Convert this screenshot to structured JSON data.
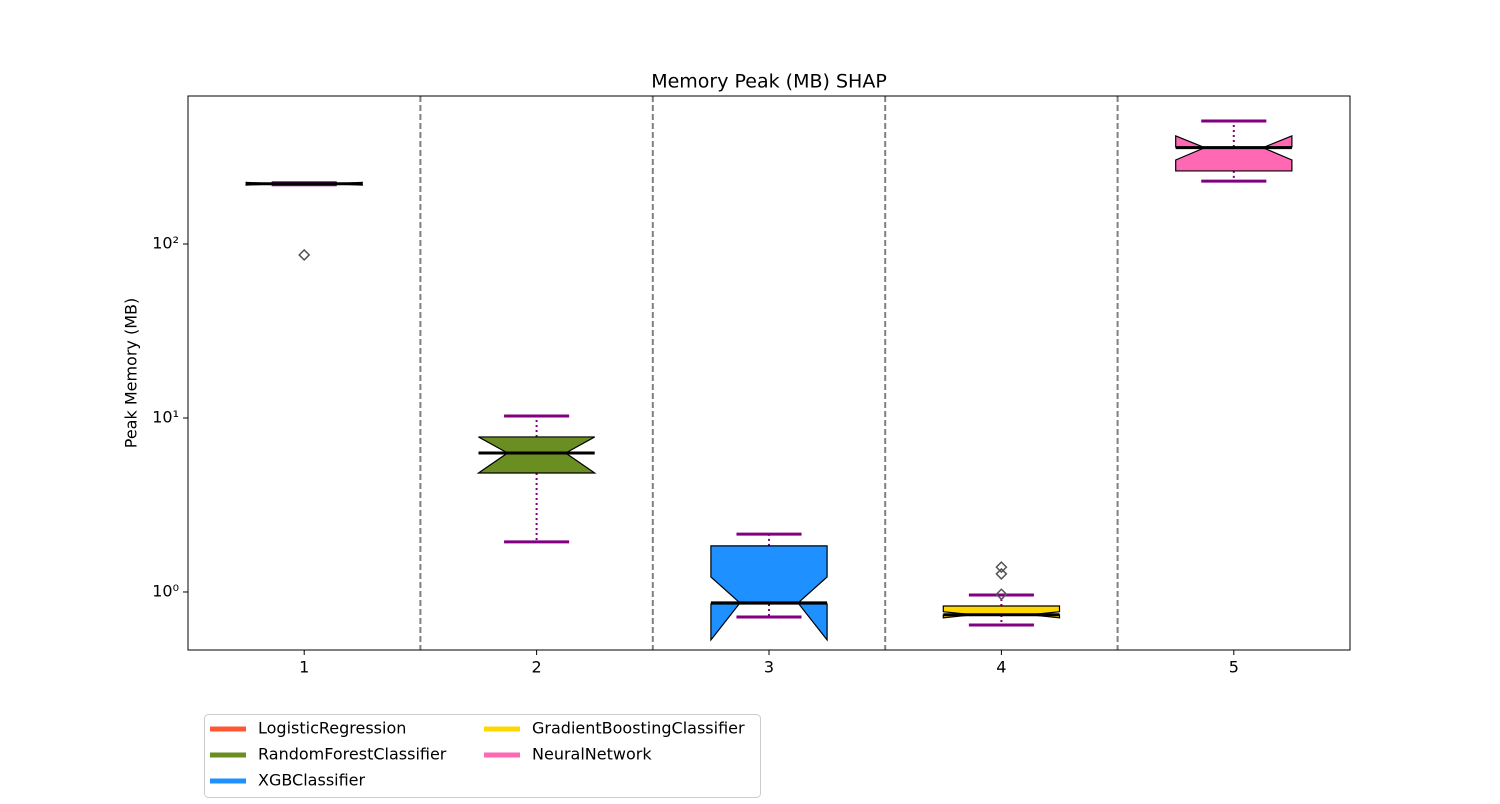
{
  "chart_data": {
    "type": "box",
    "title": "Memory Peak (MB) SHAP",
    "y_label": "Peak Memory (MB)",
    "yscale": "log",
    "ylim": [
      0.464,
      709
    ],
    "yticks": [
      {
        "value": 1,
        "label": "10⁰"
      },
      {
        "value": 10,
        "label": "10¹"
      },
      {
        "value": 100,
        "label": "10²"
      }
    ],
    "categories": [
      "1",
      "2",
      "3",
      "4",
      "5"
    ],
    "whisker_color": "#800080",
    "median_color": "#000000",
    "legend": "lower left outside",
    "series": [
      {
        "name": "LogisticRegression",
        "color": "#ff5733",
        "whislo": 219,
        "q1": 220,
        "med": 222,
        "q3": 224,
        "whishi": 225,
        "notch": [
          218,
          226
        ],
        "fliers": [
          86.5
        ]
      },
      {
        "name": "RandomForestClassifier",
        "color": "#6b8e23",
        "whislo": 1.94,
        "q1": 4.83,
        "med": 6.29,
        "q3": 7.78,
        "whishi": 10.26,
        "notch": [
          4.83,
          7.78
        ],
        "fliers": []
      },
      {
        "name": "XGBClassifier",
        "color": "#1e90ff",
        "whislo": 0.718,
        "q1": 0.853,
        "med": 0.865,
        "q3": 1.84,
        "whishi": 2.15,
        "notch": [
          0.53,
          1.22
        ],
        "fliers": []
      },
      {
        "name": "GradientBoostingClassifier",
        "color": "#ffd700",
        "whislo": 0.646,
        "q1": 0.737,
        "med": 0.74,
        "q3": 0.831,
        "whishi": 0.961,
        "notch": [
          0.71,
          0.77
        ],
        "fliers": [
          1.39,
          1.27,
          0.97
        ]
      },
      {
        "name": "NeuralNetwork",
        "color": "#ff69b4",
        "whislo": 230,
        "q1": 263,
        "med": 358,
        "q3": 361,
        "whishi": 509,
        "notch": [
          304,
          418
        ],
        "fliers": []
      }
    ]
  }
}
